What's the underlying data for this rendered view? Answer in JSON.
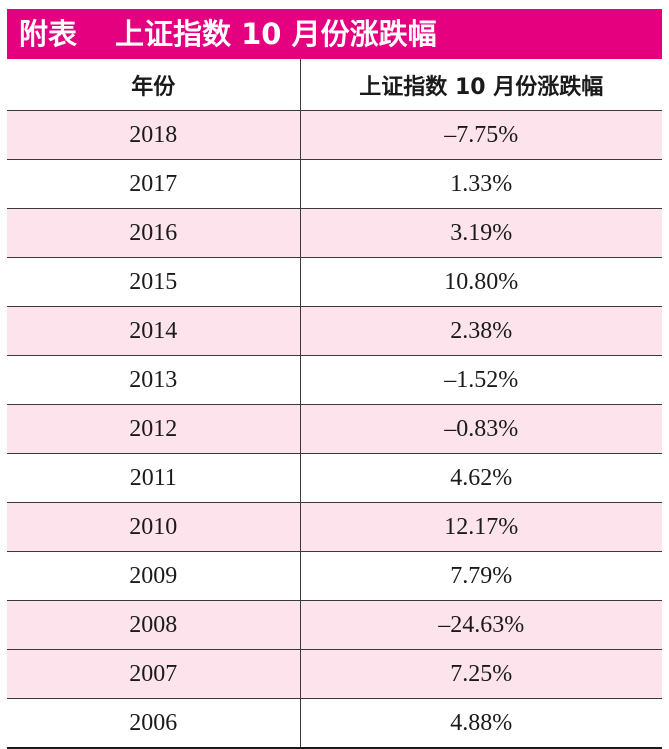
{
  "title": {
    "label": "附表",
    "text": "上证指数 10 月份涨跌幅"
  },
  "headers": {
    "year": "年份",
    "change": "上证指数 10 月份涨跌幅"
  },
  "rows": [
    {
      "year": "2018",
      "change": "–7.75%"
    },
    {
      "year": "2017",
      "change": "1.33%"
    },
    {
      "year": "2016",
      "change": "3.19%"
    },
    {
      "year": "2015",
      "change": "10.80%"
    },
    {
      "year": "2014",
      "change": "2.38%"
    },
    {
      "year": "2013",
      "change": "–1.52%"
    },
    {
      "year": "2012",
      "change": "–0.83%"
    },
    {
      "year": "2011",
      "change": "4.62%"
    },
    {
      "year": "2010",
      "change": "12.17%"
    },
    {
      "year": "2009",
      "change": "7.79%"
    },
    {
      "year": "2008",
      "change": "–24.63%"
    },
    {
      "year": "2007",
      "change": "7.25%"
    },
    {
      "year": "2006",
      "change": "4.88%"
    }
  ],
  "colors": {
    "accent": "#e4007f",
    "row_highlight": "#fde4ec"
  }
}
